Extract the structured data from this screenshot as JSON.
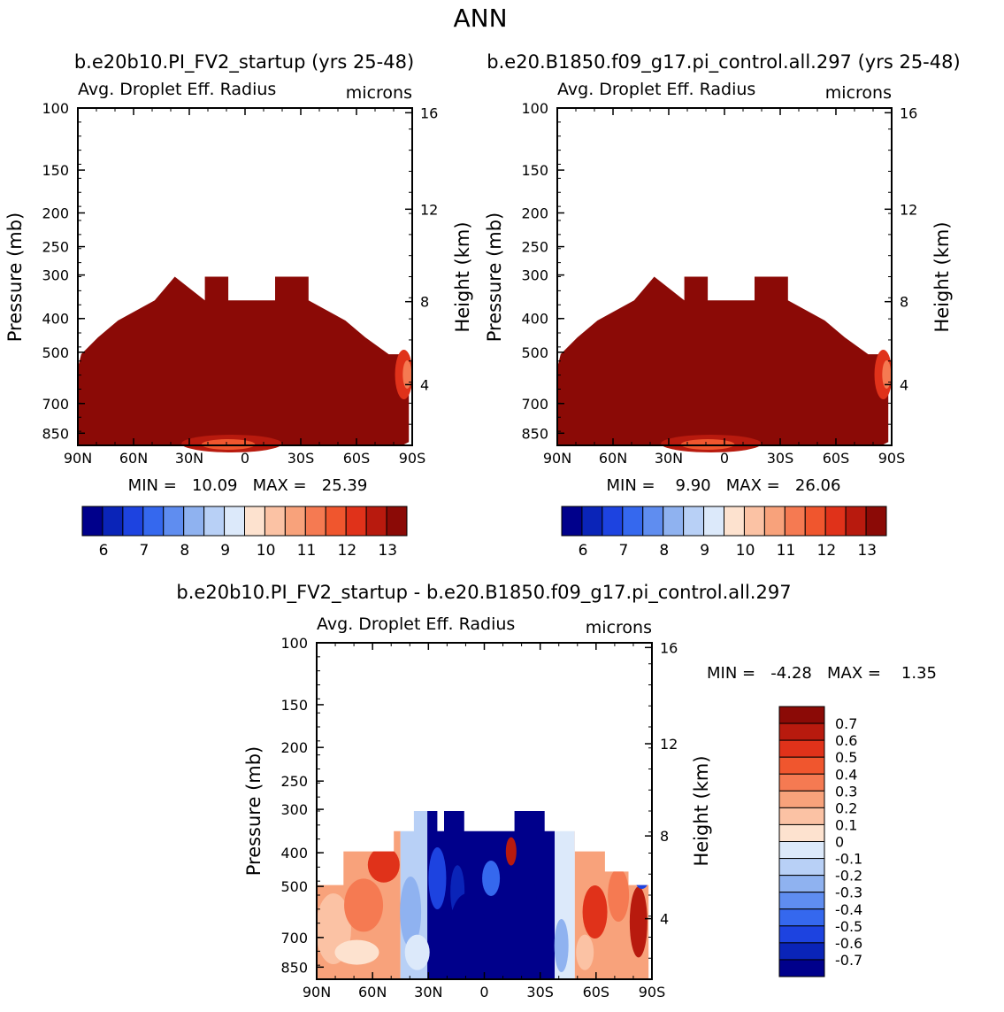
{
  "page_title": "ANN",
  "colors": {
    "dark_red": "#8b0a06",
    "pos_scale": [
      "#fde2cf",
      "#fbc2a4",
      "#f8a27b",
      "#f57a52",
      "#f0562e",
      "#e0321a",
      "#b81a0e",
      "#8b0a06"
    ],
    "neg_scale": [
      "#dce9fa",
      "#b8d0f6",
      "#8fb2f0",
      "#5f8df0",
      "#3568ee",
      "#1d43e0",
      "#0a24b8",
      "#00008b"
    ],
    "abs_scale": [
      "#00008b",
      "#0a24b8",
      "#1d43e0",
      "#3568ee",
      "#5f8df0",
      "#8fb2f0",
      "#b8d0f6",
      "#dce9fa",
      "#fde2cf",
      "#fbc2a4",
      "#f8a27b",
      "#f57a52",
      "#f0562e",
      "#e0321a",
      "#b81a0e",
      "#8b0a06"
    ],
    "diff_scale": [
      "#00008b",
      "#0a24b8",
      "#1d43e0",
      "#3568ee",
      "#5f8df0",
      "#8fb2f0",
      "#b8d0f6",
      "#dce9fa",
      "#fde2cf",
      "#fbc2a4",
      "#f8a27b",
      "#f57a52",
      "#f0562e",
      "#e0321a",
      "#b81a0e",
      "#8b0a06"
    ]
  },
  "chart_data": [
    {
      "type": "heatmap",
      "title": "b.e20b10.PI_FV2_startup (yrs 25-48)",
      "left_label": "Avg. Droplet Eff. Radius",
      "right_label": "microns",
      "ylabel": "Pressure (mb)",
      "y2label": "Height (km)",
      "y_ticks": [
        "100",
        "150",
        "200",
        "250",
        "300",
        "400",
        "500",
        "700",
        "850"
      ],
      "y2_ticks": [
        "16",
        "12",
        "8",
        "4"
      ],
      "x_ticks": [
        "90N",
        "60N",
        "30N",
        "0",
        "30S",
        "60S",
        "90S"
      ],
      "stats": "MIN =   10.09   MAX =   25.39",
      "colorbar_labels": [
        "6",
        "7",
        "8",
        "9",
        "10",
        "11",
        "12",
        "13"
      ]
    },
    {
      "type": "heatmap",
      "title": "b.e20.B1850.f09_g17.pi_control.all.297 (yrs 25-48)",
      "left_label": "Avg. Droplet Eff. Radius",
      "right_label": "microns",
      "ylabel": "Pressure (mb)",
      "y2label": "Height (km)",
      "y_ticks": [
        "100",
        "150",
        "200",
        "250",
        "300",
        "400",
        "500",
        "700",
        "850"
      ],
      "y2_ticks": [
        "16",
        "12",
        "8",
        "4"
      ],
      "x_ticks": [
        "90N",
        "60N",
        "30N",
        "0",
        "30S",
        "60S",
        "90S"
      ],
      "stats": "MIN =    9.90   MAX =   26.06",
      "colorbar_labels": [
        "6",
        "7",
        "8",
        "9",
        "10",
        "11",
        "12",
        "13"
      ]
    },
    {
      "type": "heatmap",
      "title": "b.e20b10.PI_FV2_startup - b.e20.B1850.f09_g17.pi_control.all.297",
      "left_label": "Avg. Droplet Eff. Radius",
      "right_label": "microns",
      "ylabel": "Pressure (mb)",
      "y2label": "Height (km)",
      "y_ticks": [
        "100",
        "150",
        "200",
        "250",
        "300",
        "400",
        "500",
        "700",
        "850"
      ],
      "y2_ticks": [
        "16",
        "12",
        "8",
        "4"
      ],
      "x_ticks": [
        "90N",
        "60N",
        "30N",
        "0",
        "30S",
        "60S",
        "90S"
      ],
      "stats": "MIN =   -4.28   MAX =    1.35",
      "colorbar_labels": [
        "0.7",
        "0.6",
        "0.5",
        "0.4",
        "0.3",
        "0.2",
        "0.1",
        "0",
        "-0.1",
        "-0.2",
        "-0.3",
        "-0.4",
        "-0.5",
        "-0.6",
        "-0.7"
      ]
    }
  ]
}
